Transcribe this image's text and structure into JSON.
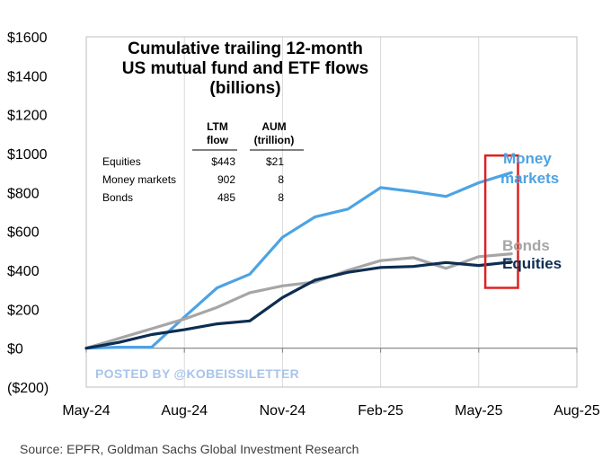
{
  "chart_data": {
    "type": "line",
    "title_lines": [
      "Cumulative trailing 12-month",
      "US  mutual fund and ETF flows",
      "(billions)"
    ],
    "y_ticks": [
      "$1600",
      "$1400",
      "$1200",
      "$1000",
      "$800",
      "$600",
      "$400",
      "$200",
      "$0",
      "($200)"
    ],
    "ylim": [
      -200,
      1600
    ],
    "x_ticks": [
      "May-24",
      "Aug-24",
      "Nov-24",
      "Feb-25",
      "May-25",
      "Aug-25"
    ],
    "x_months": [
      0,
      3,
      6,
      9,
      12,
      15
    ],
    "xlim": [
      0,
      15
    ],
    "x": [
      0,
      1,
      2,
      3,
      4,
      5,
      6,
      7,
      8,
      9,
      10,
      11,
      12,
      13
    ],
    "series": [
      {
        "name": "Money markets",
        "label_lines": [
          "Money",
          "markets"
        ],
        "color": "#4da3e3",
        "values": [
          0,
          5,
          5,
          160,
          310,
          380,
          570,
          675,
          715,
          825,
          805,
          780,
          850,
          902
        ]
      },
      {
        "name": "Bonds",
        "label_lines": [
          "Bonds"
        ],
        "color": "#a6a6a6",
        "values": [
          0,
          50,
          100,
          150,
          210,
          285,
          320,
          340,
          400,
          450,
          465,
          410,
          470,
          485
        ]
      },
      {
        "name": "Equities",
        "label_lines": [
          "Equities"
        ],
        "color": "#0d2d52",
        "values": [
          0,
          30,
          70,
          95,
          125,
          140,
          260,
          350,
          390,
          415,
          420,
          440,
          425,
          443
        ]
      }
    ],
    "highlight": {
      "x_range": [
        12.2,
        13.2
      ],
      "y_range": [
        310,
        990
      ],
      "color": "#e02020"
    },
    "table": {
      "headers": [
        [
          "LTM",
          "flow"
        ],
        [
          "AUM",
          "(trillion)"
        ]
      ],
      "rows": [
        {
          "name": "Equities",
          "flow": "$443",
          "aum": "$21"
        },
        {
          "name": "Money markets",
          "flow": "902",
          "aum": "8"
        },
        {
          "name": "Bonds",
          "flow": "485",
          "aum": "8"
        }
      ]
    }
  },
  "watermark": "POSTED BY @KOBEISSILETTER",
  "source": "Source: EPFR, Goldman Sachs Global Investment Research"
}
